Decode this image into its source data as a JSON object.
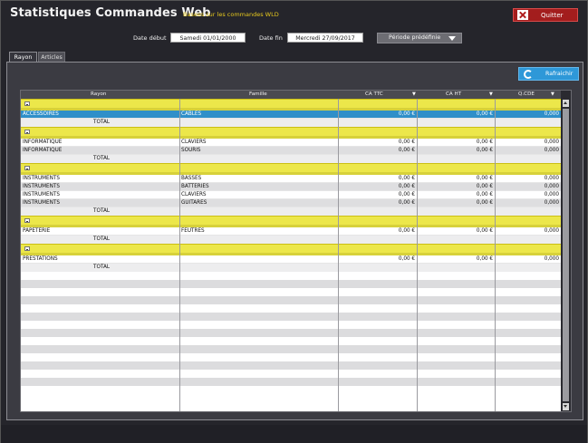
{
  "app": {
    "title": "Statistiques Commandes Web",
    "subtitle": "Basees sur les commandes WLD",
    "quit_label": "Quitter"
  },
  "filters": {
    "start_label": "Date début",
    "start_value": "Samedi 01/01/2000",
    "end_label": "Date fin",
    "end_value": "Mercredi 27/09/2017",
    "period_label": "Période prédéfinie"
  },
  "tabs": [
    "Rayon",
    "Articles"
  ],
  "refresh_label": "Rafraichir",
  "grid": {
    "headers": {
      "rayon": "Rayon",
      "famille": "Famille",
      "ca_ttc": "CA TTC",
      "ca_ht": "CA HT",
      "qte": "Q.CDE"
    },
    "groups": [
      {
        "rows": [
          {
            "rayon": "ACCESSOIRES",
            "famille": "CABLES",
            "ca_ttc": "0,00 €",
            "ca_ht": "0,00 €",
            "qte": "0,000",
            "selected": true
          }
        ],
        "total": "TOTAL"
      },
      {
        "rows": [
          {
            "rayon": "INFORMATIQUE",
            "famille": "CLAVIERS",
            "ca_ttc": "0,00 €",
            "ca_ht": "0,00 €",
            "qte": "0,000"
          },
          {
            "rayon": "INFORMATIQUE",
            "famille": "SOURIS",
            "ca_ttc": "0,00 €",
            "ca_ht": "0,00 €",
            "qte": "0,000"
          }
        ],
        "total": "TOTAL"
      },
      {
        "rows": [
          {
            "rayon": "INSTRUMENTS",
            "famille": "BASSES",
            "ca_ttc": "0,00 €",
            "ca_ht": "0,00 €",
            "qte": "0,000"
          },
          {
            "rayon": "INSTRUMENTS",
            "famille": "BATTERIES",
            "ca_ttc": "0,00 €",
            "ca_ht": "0,00 €",
            "qte": "0,000"
          },
          {
            "rayon": "INSTRUMENTS",
            "famille": "CLAVIERS",
            "ca_ttc": "0,00 €",
            "ca_ht": "0,00 €",
            "qte": "0,000"
          },
          {
            "rayon": "INSTRUMENTS",
            "famille": "GUITARES",
            "ca_ttc": "0,00 €",
            "ca_ht": "0,00 €",
            "qte": "0,000"
          }
        ],
        "total": "TOTAL"
      },
      {
        "rows": [
          {
            "rayon": "PAPETERIE",
            "famille": "FEUTRES",
            "ca_ttc": "0,00 €",
            "ca_ht": "0,00 €",
            "qte": "0,000"
          }
        ],
        "total": "TOTAL"
      },
      {
        "rows": [
          {
            "rayon": "PRESTATIONS",
            "famille": "",
            "ca_ttc": "0,00 €",
            "ca_ht": "0,00 €",
            "qte": "0,000"
          }
        ],
        "total": "TOTAL"
      }
    ]
  },
  "colors": {
    "group_band": "#ece74a",
    "selected_row": "#2f8fc9",
    "quit_button": "#a31d1d",
    "refresh_button": "#2e98d8",
    "subtitle": "#e6c81e"
  }
}
